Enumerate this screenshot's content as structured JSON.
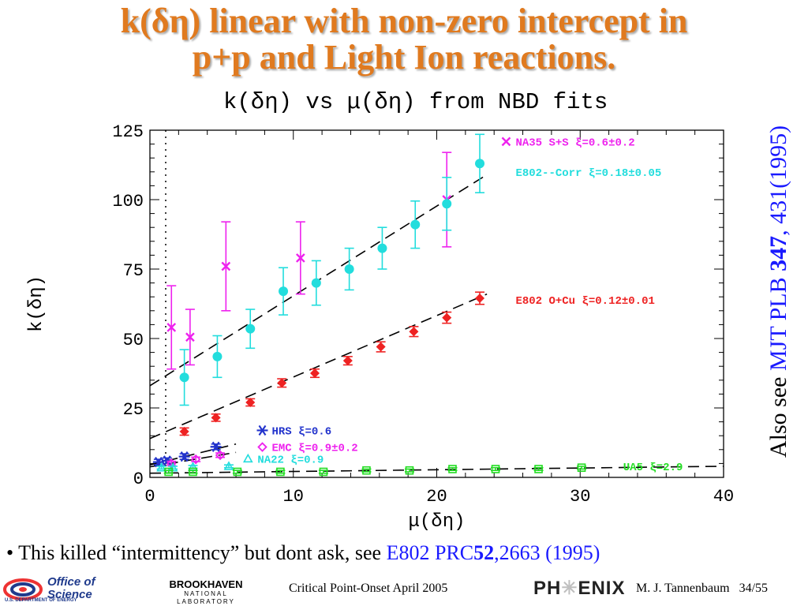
{
  "slide": {
    "title_line1": "k(δη) linear with non-zero intercept in",
    "title_line2": "p+p and Light Ion reactions.",
    "side_note_prefix": "Also see ",
    "side_note_ref": "MJT PLB ",
    "side_note_vol": "347",
    "side_note_pages": ", 431(1995)",
    "bullet_mark": "•",
    "bullet_text": " This killed “intermittency” but dont ask, see ",
    "bullet_ref": "E802 PRC",
    "bullet_vol": "52",
    "bullet_pages": ",2663 (1995)"
  },
  "footer": {
    "office_line1": "Office of",
    "office_line2": "Science",
    "office_line3": "U.S. DEPARTMENT OF ENERGY",
    "bnl_line1": "BROOKHAVEN",
    "bnl_line2": "NATIONAL LABORATORY",
    "center": "Critical Point-Onset April 2005",
    "phenix_a": "PH",
    "phenix_star": "✳",
    "phenix_b": "ENIX",
    "author": "M. J. Tannenbaum",
    "page": "34/55"
  },
  "chart_data": {
    "type": "scatter",
    "title": "k(δη) vs μ(δη) from NBD fits",
    "xlabel": "μ(δη)",
    "ylabel": "k(δη)",
    "xlim": [
      0,
      40
    ],
    "ylim": [
      0,
      125
    ],
    "xticks": [
      0,
      10,
      20,
      30,
      40
    ],
    "yticks": [
      0,
      25,
      50,
      75,
      100,
      125
    ],
    "xtick_labels": [
      "0",
      "10",
      "20",
      "30",
      "40"
    ],
    "ytick_labels": [
      "0",
      "25",
      "50",
      "75",
      "100",
      "125"
    ],
    "vertical_dotted_line_x": 1.1,
    "series": [
      {
        "name": "NA35 S+S ξ=0.6±0.2",
        "color": "#ee22ee",
        "marker": "x",
        "points": [
          {
            "x": 1.5,
            "y": 54,
            "yerr": 15
          },
          {
            "x": 2.8,
            "y": 50.5,
            "yerr": 10
          },
          {
            "x": 5.3,
            "y": 76,
            "yerr": 16
          },
          {
            "x": 10.5,
            "y": 79,
            "yerr": 13
          },
          {
            "x": 20.7,
            "y": 100,
            "yerr": 17
          }
        ]
      },
      {
        "name": "E802--Corr ξ=0.18±0.05",
        "color": "#22dddd",
        "marker": "circle",
        "points": [
          {
            "x": 2.4,
            "y": 36,
            "yerr": 10
          },
          {
            "x": 4.7,
            "y": 43.5,
            "yerr": 7.5
          },
          {
            "x": 7.0,
            "y": 53.5,
            "yerr": 7
          },
          {
            "x": 9.3,
            "y": 67,
            "yerr": 8.5
          },
          {
            "x": 11.6,
            "y": 70,
            "yerr": 8
          },
          {
            "x": 13.9,
            "y": 75,
            "yerr": 7.5
          },
          {
            "x": 16.2,
            "y": 82.5,
            "yerr": 7.5
          },
          {
            "x": 18.5,
            "y": 91,
            "yerr": 8.5
          },
          {
            "x": 20.7,
            "y": 98.5,
            "yerr": 9.5
          },
          {
            "x": 23.0,
            "y": 113,
            "yerr": 10.5
          }
        ]
      },
      {
        "name": "E802 O+Cu ξ=0.12±0.01",
        "color": "#ee2222",
        "marker": "diamond",
        "points": [
          {
            "x": 2.4,
            "y": 16.5,
            "yerr": 1.3
          },
          {
            "x": 4.6,
            "y": 21.5,
            "yerr": 1.3
          },
          {
            "x": 7.0,
            "y": 27,
            "yerr": 1.3
          },
          {
            "x": 9.2,
            "y": 34,
            "yerr": 1.5
          },
          {
            "x": 11.5,
            "y": 37.5,
            "yerr": 1.5
          },
          {
            "x": 13.8,
            "y": 42,
            "yerr": 1.5
          },
          {
            "x": 16.1,
            "y": 47,
            "yerr": 1.8
          },
          {
            "x": 18.4,
            "y": 52.5,
            "yerr": 1.8
          },
          {
            "x": 20.7,
            "y": 57.5,
            "yerr": 2
          },
          {
            "x": 23.0,
            "y": 64.5,
            "yerr": 2.2
          }
        ]
      },
      {
        "name": "HRS ξ=0.6",
        "color": "#2233cc",
        "marker": "star",
        "points": [
          {
            "x": 0.6,
            "y": 5.5,
            "yerr": 1
          },
          {
            "x": 1.2,
            "y": 6,
            "yerr": 1
          },
          {
            "x": 2.4,
            "y": 7.5,
            "yerr": 1
          },
          {
            "x": 4.6,
            "y": 11,
            "yerr": 1
          }
        ]
      },
      {
        "name": "EMC ξ=0.9±0.2",
        "color": "#ee22ee",
        "marker": "diamond-open",
        "points": [
          {
            "x": 1.5,
            "y": 5,
            "yerr": 0.8
          },
          {
            "x": 3.2,
            "y": 6.5,
            "yerr": 0.8
          },
          {
            "x": 4.9,
            "y": 8,
            "yerr": 0.8
          }
        ]
      },
      {
        "name": "NA22 ξ=0.9",
        "color": "#22dddd",
        "marker": "triangle",
        "points": [
          {
            "x": 0.8,
            "y": 3.5,
            "yerr": 0.5
          },
          {
            "x": 1.6,
            "y": 3.5,
            "yerr": 0.5
          },
          {
            "x": 3.0,
            "y": 3.8,
            "yerr": 0.5
          },
          {
            "x": 5.5,
            "y": 4,
            "yerr": 0.5
          }
        ]
      },
      {
        "name": "UA5 ξ=2.9",
        "color": "#22dd22",
        "marker": "square-open",
        "points": [
          {
            "x": 1.3,
            "y": 2,
            "yerr": 0.5
          },
          {
            "x": 3.0,
            "y": 2,
            "yerr": 0.5
          },
          {
            "x": 6.1,
            "y": 2,
            "yerr": 0.5
          },
          {
            "x": 9.1,
            "y": 2,
            "yerr": 0.5
          },
          {
            "x": 12.1,
            "y": 2,
            "yerr": 0.5
          },
          {
            "x": 15.1,
            "y": 2.5,
            "yerr": 0.5
          },
          {
            "x": 18.1,
            "y": 2.5,
            "yerr": 0.5
          },
          {
            "x": 21.1,
            "y": 3,
            "yerr": 0.5
          },
          {
            "x": 24.1,
            "y": 3,
            "yerr": 0.5
          },
          {
            "x": 27.1,
            "y": 3,
            "yerr": 0.5
          },
          {
            "x": 30.1,
            "y": 3.5,
            "yerr": 0.5
          }
        ]
      }
    ],
    "fit_lines": [
      {
        "name": "NA35/E802-Corr fit",
        "x": [
          0,
          23.5
        ],
        "y": [
          33,
          109
        ]
      },
      {
        "name": "E802 O+Cu fit",
        "x": [
          0,
          23.5
        ],
        "y": [
          14,
          66
        ]
      },
      {
        "name": "HRS fit",
        "x": [
          0,
          6
        ],
        "y": [
          4.5,
          12
        ]
      },
      {
        "name": "EMC fit",
        "x": [
          0,
          6
        ],
        "y": [
          3.8,
          9
        ]
      },
      {
        "name": "UA5 fit",
        "x": [
          0,
          40
        ],
        "y": [
          1.5,
          4
        ]
      }
    ],
    "legend": [
      {
        "label": "NA35 S+S ξ=0.6±0.2",
        "color": "#ee22ee",
        "marker": "x",
        "text_at": [
          25.5,
          119.5
        ]
      },
      {
        "label": "E802--Corr ξ=0.18±0.05",
        "color": "#22dddd",
        "marker": "none",
        "text_at": [
          25.5,
          108.5
        ]
      },
      {
        "label": "E802 O+Cu ξ=0.12±0.01",
        "color": "#ee2222",
        "marker": "none",
        "text_at": [
          25.5,
          62.5
        ]
      },
      {
        "label": "HRS ξ=0.6",
        "color": "#2233cc",
        "marker": "star",
        "text_at": [
          8.5,
          15.5
        ]
      },
      {
        "label": "EMC ξ=0.9±0.2",
        "color": "#ee22ee",
        "marker": "diamond-open",
        "text_at": [
          8.5,
          9.5
        ]
      },
      {
        "label": "NA22 ξ=0.9",
        "color": "#22dddd",
        "marker": "triangle",
        "text_at": [
          7.5,
          5.3
        ]
      },
      {
        "label": "UA5 ξ=2.9",
        "color": "#22dd22",
        "marker": "none",
        "text_at": [
          33,
          2.5
        ]
      }
    ]
  }
}
